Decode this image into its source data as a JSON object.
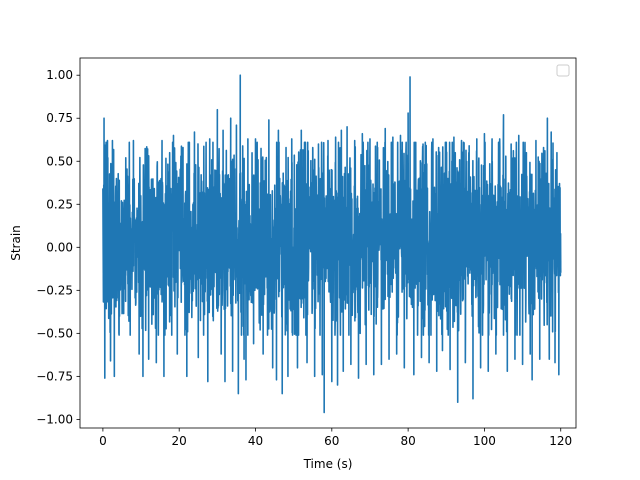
{
  "chart_data": {
    "type": "line",
    "title": "",
    "xlabel": "Time (s)",
    "ylabel": "Strain",
    "xlim": [
      -6,
      124
    ],
    "ylim": [
      -1.05,
      1.1
    ],
    "x_ticks": [
      0,
      20,
      40,
      60,
      80,
      100,
      120
    ],
    "x_tick_labels": [
      "0",
      "20",
      "40",
      "60",
      "80",
      "100",
      "120"
    ],
    "y_ticks": [
      -1.0,
      -0.75,
      -0.5,
      -0.25,
      0.0,
      0.25,
      0.5,
      0.75,
      1.0
    ],
    "y_tick_labels": [
      "−1.00",
      "−0.75",
      "−0.50",
      "−0.25",
      "0.00",
      "0.25",
      "0.50",
      "0.75",
      "1.00"
    ],
    "grid": false,
    "legend": {
      "placement": "top-right",
      "entries": []
    },
    "series": [
      {
        "color": "#1f77b4",
        "x_range": [
          0,
          120
        ],
        "typical_range": [
          -0.45,
          0.55
        ],
        "peaks": [
          [
            0.3,
            0.75
          ],
          [
            0.5,
            -0.76
          ],
          [
            1.2,
            0.62
          ],
          [
            2.0,
            -0.66
          ],
          [
            2.5,
            0.62
          ],
          [
            3.0,
            -0.75
          ],
          [
            6.0,
            0.52
          ],
          [
            8.0,
            0.62
          ],
          [
            9.5,
            -0.62
          ],
          [
            10.5,
            -0.75
          ],
          [
            11.5,
            0.55
          ],
          [
            12.0,
            -0.65
          ],
          [
            14.0,
            -0.67
          ],
          [
            15.5,
            0.62
          ],
          [
            16.0,
            -0.75
          ],
          [
            17.5,
            0.55
          ],
          [
            18.5,
            0.65
          ],
          [
            19.5,
            -0.62
          ],
          [
            21.0,
            0.58
          ],
          [
            22.0,
            -0.75
          ],
          [
            24.0,
            0.67
          ],
          [
            25.0,
            -0.64
          ],
          [
            27.5,
            -0.78
          ],
          [
            28.0,
            0.63
          ],
          [
            30.0,
            0.8
          ],
          [
            31.0,
            -0.62
          ],
          [
            31.5,
            0.68
          ],
          [
            32.0,
            -0.78
          ],
          [
            33.5,
            0.75
          ],
          [
            34.0,
            -0.72
          ],
          [
            35.0,
            0.71
          ],
          [
            35.5,
            -0.85
          ],
          [
            36.0,
            1.0
          ],
          [
            37.0,
            -0.65
          ],
          [
            37.5,
            -0.77
          ],
          [
            38.0,
            0.63
          ],
          [
            39.5,
            -0.56
          ],
          [
            40.0,
            0.63
          ],
          [
            41.5,
            0.52
          ],
          [
            42.0,
            -0.62
          ],
          [
            43.5,
            0.74
          ],
          [
            44.5,
            -0.7
          ],
          [
            45.5,
            -0.77
          ],
          [
            46.0,
            0.68
          ],
          [
            47.0,
            -0.85
          ],
          [
            48.0,
            0.58
          ],
          [
            48.5,
            -0.75
          ],
          [
            49.5,
            0.63
          ],
          [
            51.0,
            -0.7
          ],
          [
            52.0,
            0.68
          ],
          [
            53.5,
            -0.67
          ],
          [
            55.0,
            0.58
          ],
          [
            55.5,
            -0.75
          ],
          [
            56.5,
            0.6
          ],
          [
            57.5,
            -0.74
          ],
          [
            58.0,
            -0.96
          ],
          [
            59.0,
            0.62
          ],
          [
            60.0,
            -0.78
          ],
          [
            61.0,
            0.64
          ],
          [
            61.5,
            -0.8
          ],
          [
            62.5,
            0.68
          ],
          [
            63.0,
            -0.72
          ],
          [
            64.0,
            0.7
          ],
          [
            65.0,
            -0.68
          ],
          [
            66.0,
            0.62
          ],
          [
            67.0,
            -0.76
          ],
          [
            68.0,
            0.66
          ],
          [
            69.0,
            -0.68
          ],
          [
            70.0,
            0.63
          ],
          [
            71.0,
            -0.74
          ],
          [
            72.0,
            0.58
          ],
          [
            73.0,
            -0.68
          ],
          [
            74.0,
            0.69
          ],
          [
            75.0,
            -0.65
          ],
          [
            76.0,
            0.64
          ],
          [
            77.0,
            -0.62
          ],
          [
            78.0,
            0.65
          ],
          [
            79.0,
            -0.7
          ],
          [
            80.0,
            0.78
          ],
          [
            80.5,
            0.99
          ],
          [
            81.5,
            -0.74
          ],
          [
            82.0,
            0.61
          ],
          [
            83.5,
            -0.64
          ],
          [
            84.5,
            0.61
          ],
          [
            85.5,
            -0.67
          ],
          [
            86.5,
            0.63
          ],
          [
            87.5,
            -0.72
          ],
          [
            88.0,
            0.58
          ],
          [
            89.0,
            -0.6
          ],
          [
            90.0,
            0.61
          ],
          [
            91.0,
            -0.71
          ],
          [
            92.0,
            0.64
          ],
          [
            93.0,
            -0.9
          ],
          [
            94.0,
            0.62
          ],
          [
            95.0,
            -0.67
          ],
          [
            96.0,
            0.59
          ],
          [
            97.0,
            -0.88
          ],
          [
            98.0,
            0.63
          ],
          [
            99.0,
            -0.7
          ],
          [
            100.0,
            0.66
          ],
          [
            101.0,
            -0.72
          ],
          [
            102.0,
            0.63
          ],
          [
            103.0,
            -0.62
          ],
          [
            104.0,
            0.63
          ],
          [
            105.0,
            0.77
          ],
          [
            106.0,
            -0.72
          ],
          [
            107.0,
            0.6
          ],
          [
            108.0,
            -0.65
          ],
          [
            109.0,
            0.65
          ],
          [
            110.0,
            -0.68
          ],
          [
            111.0,
            0.55
          ],
          [
            112.0,
            -0.62
          ],
          [
            112.5,
            -0.77
          ],
          [
            113.5,
            0.62
          ],
          [
            114.5,
            -0.65
          ],
          [
            115.5,
            0.58
          ],
          [
            116.5,
            0.75
          ],
          [
            117.0,
            -0.65
          ],
          [
            117.5,
            0.67
          ],
          [
            118.5,
            -0.67
          ],
          [
            119.0,
            0.55
          ],
          [
            119.5,
            -0.74
          ]
        ]
      }
    ]
  }
}
